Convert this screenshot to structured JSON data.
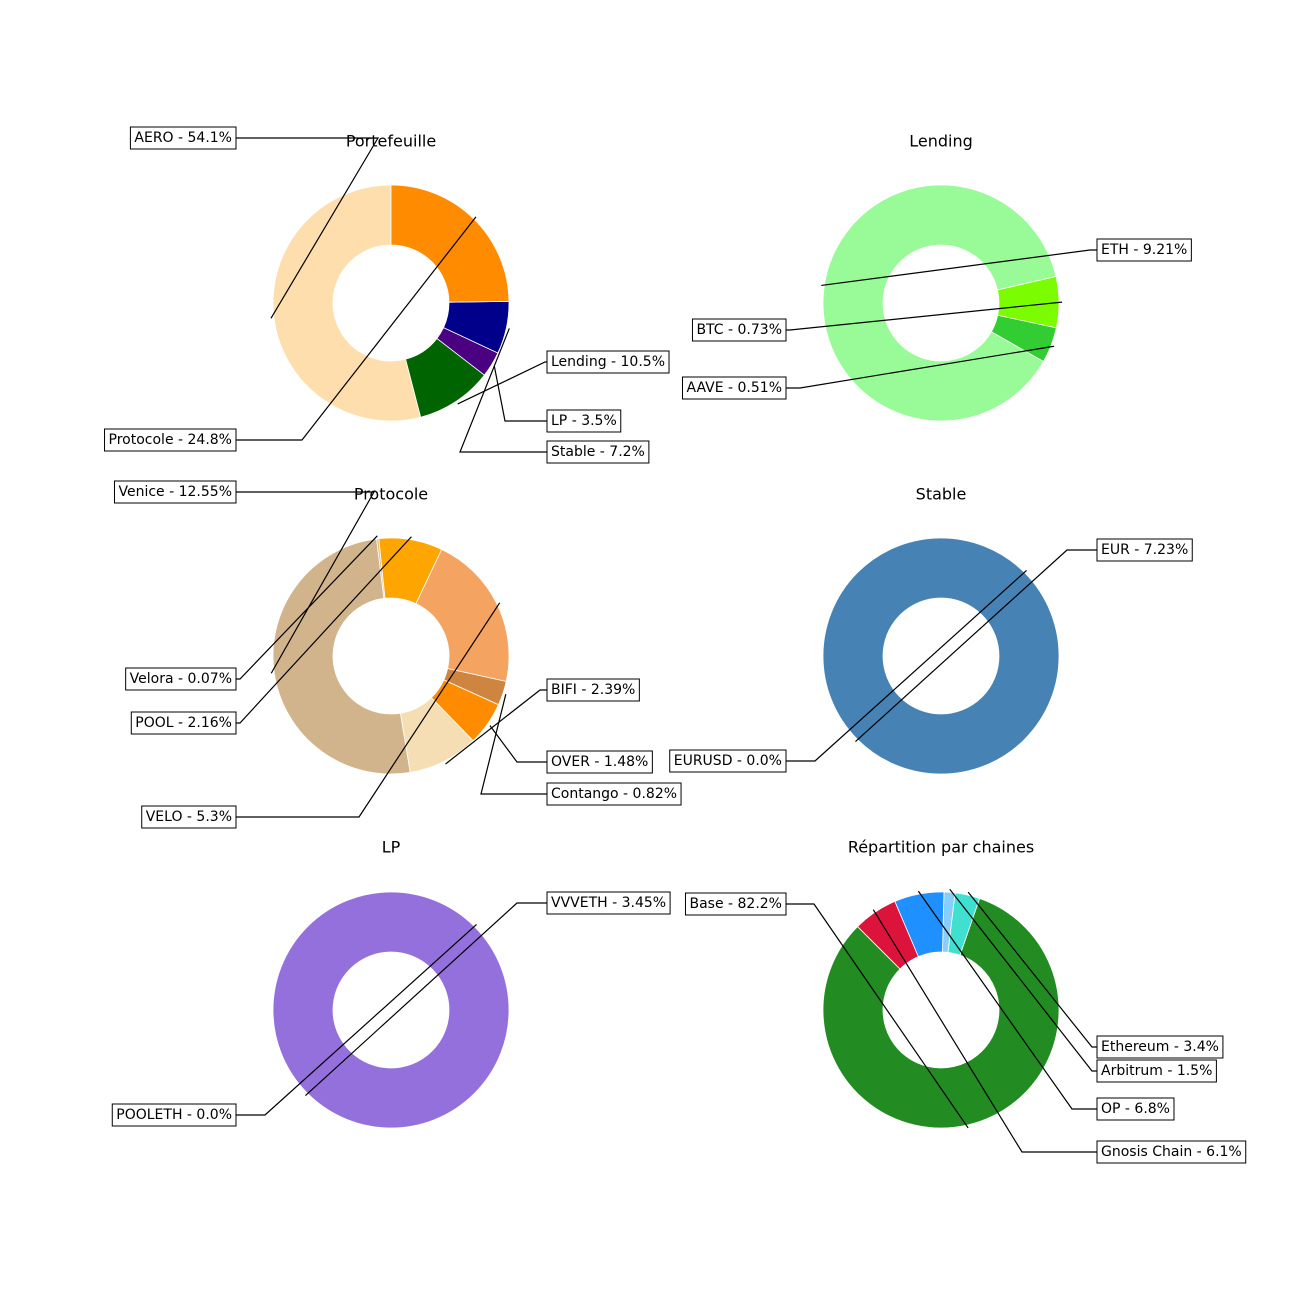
{
  "chart_data": [
    {
      "type": "pie",
      "title": "Portefeuille",
      "slices": [
        {
          "label": "AERO - 54.1%",
          "value": 54.1,
          "color": "#FFDEAD"
        },
        {
          "label": "Lending - 10.5%",
          "value": 10.5,
          "color": "#006400"
        },
        {
          "label": "LP - 3.5%",
          "value": 3.5,
          "color": "#4B0082"
        },
        {
          "label": "Stable - 7.2%",
          "value": 7.2,
          "color": "#00008B"
        },
        {
          "label": "Protocole - 24.8%",
          "value": 24.8,
          "color": "#FF8C00"
        }
      ]
    },
    {
      "type": "pie",
      "title": "Lending",
      "slices": [
        {
          "label": "ETH - 9.21%",
          "value": 9.21,
          "color": "#98FB98"
        },
        {
          "label": "AAVE - 0.51%",
          "value": 0.51,
          "color": "#32CD32"
        },
        {
          "label": "BTC - 0.73%",
          "value": 0.73,
          "color": "#7CFC00"
        }
      ]
    },
    {
      "type": "pie",
      "title": "Protocole",
      "slices": [
        {
          "label": "Venice - 12.55%",
          "value": 12.55,
          "color": "#D2B48C"
        },
        {
          "label": "BIFI - 2.39%",
          "value": 2.39,
          "color": "#F5DEB3"
        },
        {
          "label": "OVER - 1.48%",
          "value": 1.48,
          "color": "#FF8C00"
        },
        {
          "label": "Contango - 0.82%",
          "value": 0.82,
          "color": "#CD853F"
        },
        {
          "label": "VELO - 5.3%",
          "value": 5.3,
          "color": "#F4A460"
        },
        {
          "label": "POOL - 2.16%",
          "value": 2.16,
          "color": "#FFA500"
        },
        {
          "label": "Velora - 0.07%",
          "value": 0.07,
          "color": "#DEB887"
        }
      ]
    },
    {
      "type": "pie",
      "title": "Stable",
      "slices": [
        {
          "label": "EUR - 7.23%",
          "value": 7.23,
          "color": "#4682B4"
        },
        {
          "label": "EURUSD - 0.0%",
          "value": 0.0,
          "color": "#4682B4"
        }
      ]
    },
    {
      "type": "pie",
      "title": "LP",
      "slices": [
        {
          "label": "VVVETH - 3.45%",
          "value": 3.45,
          "color": "#9370DB"
        },
        {
          "label": "POOLETH - 0.0%",
          "value": 0.0,
          "color": "#9370DB"
        }
      ]
    },
    {
      "type": "pie",
      "title": "Répartition par chaines",
      "slices": [
        {
          "label": "Base - 82.2%",
          "value": 82.2,
          "color": "#228B22"
        },
        {
          "label": "Ethereum - 3.4%",
          "value": 3.4,
          "color": "#40E0D0"
        },
        {
          "label": "Arbitrum - 1.5%",
          "value": 1.5,
          "color": "#87CEFA"
        },
        {
          "label": "OP - 6.8%",
          "value": 6.8,
          "color": "#1E90FF"
        },
        {
          "label": "Gnosis Chain - 6.1%",
          "value": 6.1,
          "color": "#DC143C"
        }
      ]
    }
  ]
}
